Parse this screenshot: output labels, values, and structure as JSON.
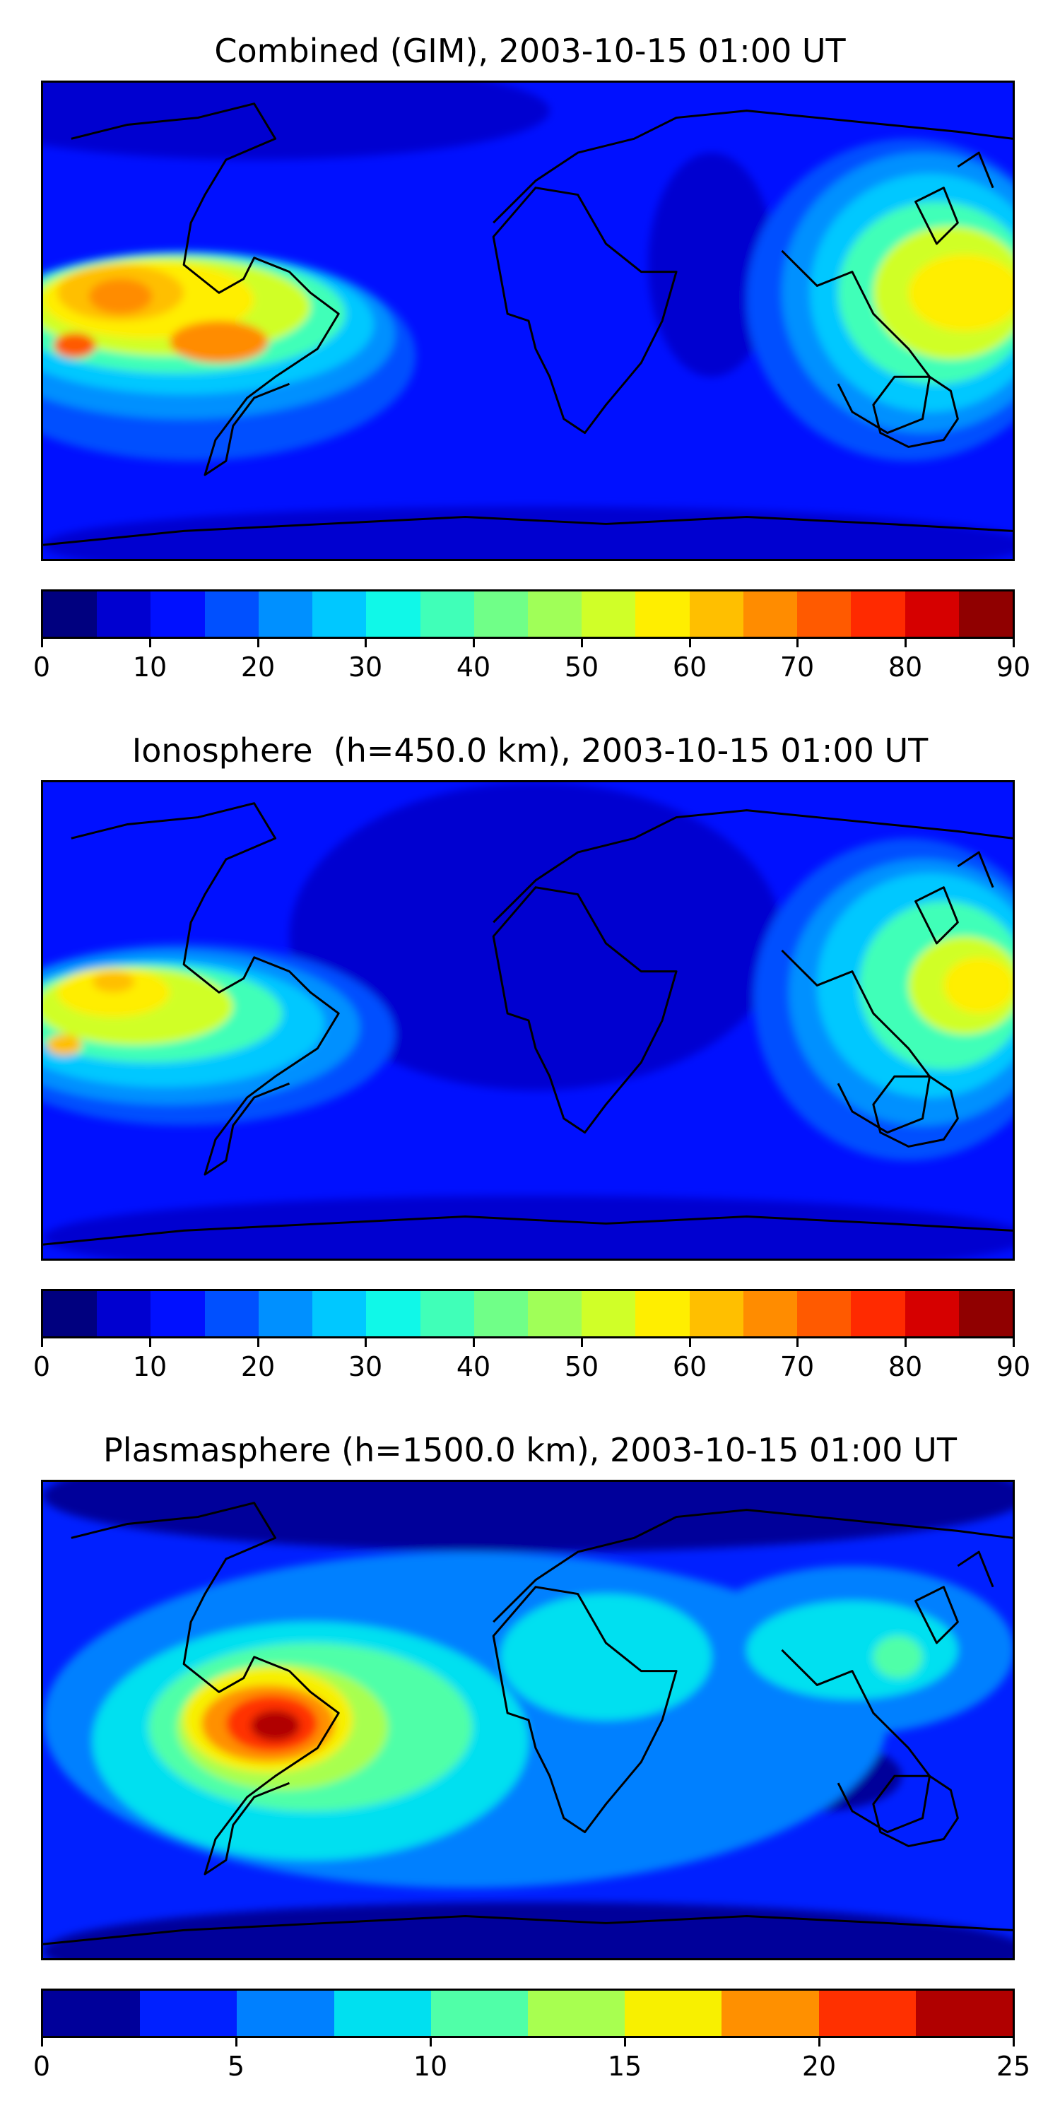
{
  "chart_data": [
    {
      "type": "heatmap",
      "title": "Combined (GIM), 2003-10-15 01:00 UT",
      "xlabel": "",
      "ylabel": "",
      "colorbar": {
        "range": [
          0,
          90
        ],
        "levels": [
          0,
          5,
          10,
          15,
          20,
          25,
          30,
          35,
          40,
          45,
          50,
          55,
          60,
          65,
          70,
          75,
          80,
          85,
          90
        ],
        "ticks": [
          0,
          10,
          20,
          30,
          40,
          50,
          60,
          70,
          80,
          90
        ]
      },
      "features": [
        {
          "region": "eastern Pacific, off Mexico/Central America",
          "value": 65
        },
        {
          "region": "central Pacific near date line, south of Hawaii",
          "value": 72
        },
        {
          "region": "western Pacific / Philippine Sea",
          "value": 62
        },
        {
          "region": "Africa and Europe",
          "value": 10
        },
        {
          "region": "South Atlantic / southern ocean",
          "value": 8
        }
      ]
    },
    {
      "type": "heatmap",
      "title": "Ionosphere  (h=450.0 km), 2003-10-15 01:00 UT",
      "xlabel": "",
      "ylabel": "",
      "colorbar": {
        "range": [
          0,
          90
        ],
        "levels": [
          0,
          5,
          10,
          15,
          20,
          25,
          30,
          35,
          40,
          45,
          50,
          55,
          60,
          65,
          70,
          75,
          80,
          85,
          90
        ],
        "ticks": [
          0,
          10,
          20,
          30,
          40,
          50,
          60,
          70,
          80,
          90
        ]
      },
      "features": [
        {
          "region": "eastern Pacific, off Mexico",
          "value": 60
        },
        {
          "region": "central Pacific near date line",
          "value": 62
        },
        {
          "region": "western Pacific / Philippine Sea",
          "value": 55
        },
        {
          "region": "Africa and Europe",
          "value": 5
        },
        {
          "region": "southern ocean",
          "value": 8
        }
      ]
    },
    {
      "type": "heatmap",
      "title": "Plasmasphere (h=1500.0 km), 2003-10-15 01:00 UT",
      "xlabel": "",
      "ylabel": "",
      "colorbar": {
        "range": [
          0,
          25
        ],
        "levels": [
          0,
          2.5,
          5,
          7.5,
          10,
          12.5,
          15,
          17.5,
          20,
          22.5,
          25
        ],
        "ticks": [
          0,
          5,
          10,
          15,
          20,
          25
        ]
      },
      "features": [
        {
          "region": "eastern Pacific off Peru/Ecuador",
          "value": 23
        },
        {
          "region": "northern South America",
          "value": 16
        },
        {
          "region": "tropical Africa",
          "value": 9
        },
        {
          "region": "Southeast Asia / Indonesia",
          "value": 10
        },
        {
          "region": "polar regions",
          "value": 3
        }
      ]
    }
  ],
  "colors": {
    "jet18": [
      "#00007f",
      "#0000d0",
      "#0010ff",
      "#0050ff",
      "#0090ff",
      "#00c8ff",
      "#10f8e8",
      "#40ffb8",
      "#70ff88",
      "#a0ff58",
      "#d0ff28",
      "#ffee00",
      "#ffbf00",
      "#ff8c00",
      "#ff5a00",
      "#ff2a00",
      "#d60000",
      "#900000"
    ],
    "jet10": [
      "#00009a",
      "#0020ff",
      "#0080ff",
      "#00e0f0",
      "#50ffa8",
      "#a8ff50",
      "#f8f000",
      "#ff9000",
      "#ff3000",
      "#b00000"
    ],
    "coast": "#000000"
  }
}
